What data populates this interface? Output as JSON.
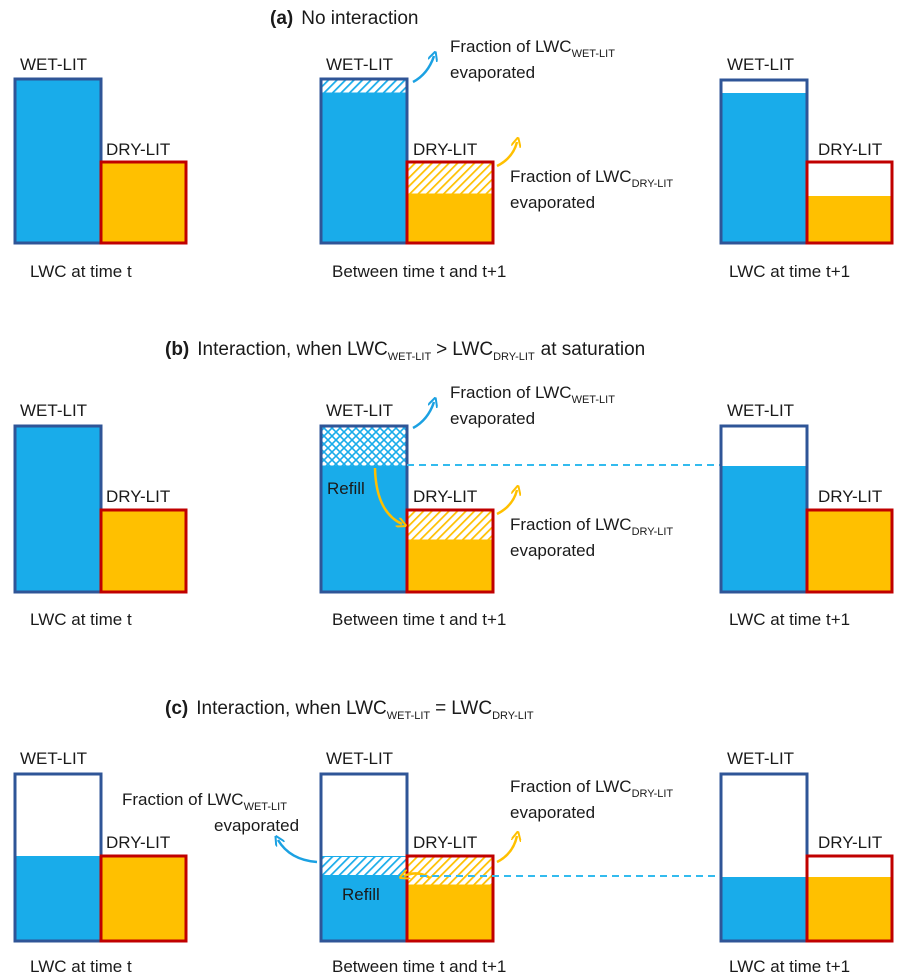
{
  "colors": {
    "wet_fill": "#19ACEA",
    "wet_border": "#2F5597",
    "dry_fill": "#FFC000",
    "dry_border": "#C00000",
    "wet_arrow": "#1BA1E2",
    "dry_arrow": "#FFC000",
    "dashed_line": "#33BBEE"
  },
  "labels": {
    "wet": "WET-LIT",
    "dry": "DRY-LIT",
    "refill": "Refill",
    "lwc": "LWC",
    "wet_sub": "WET-LIT",
    "dry_sub": "DRY-LIT",
    "fraction_prefix": "Fraction of LWC",
    "evaporated": "evaporated"
  },
  "captions": {
    "time_t": "LWC at time t",
    "between": "Between time t and t+1",
    "time_t1": "LWC at time t+1"
  },
  "panels": {
    "a": {
      "letter": "(a)",
      "title": "No interaction"
    },
    "b": {
      "letter": "(b)",
      "title_pre": "Interaction, when",
      "op": ">",
      "title_post": "at saturation"
    },
    "c": {
      "letter": "(c)",
      "title_pre": "Interaction, when",
      "op": "="
    }
  },
  "icons": [
    "evaporation-arrow-icon",
    "refill-arrow-icon"
  ]
}
